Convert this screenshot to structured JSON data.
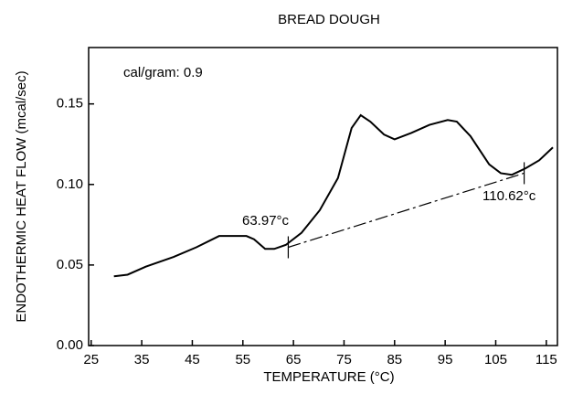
{
  "chart_data": {
    "type": "line",
    "title": "BREAD DOUGH",
    "xlabel": "TEMPERATURE (°C)",
    "ylabel": "ENDOTHERMIC HEAT FLOW (mcal/sec)",
    "annotations": [
      "cal/gram: 0.9",
      "63.97°c",
      "110.62°c"
    ],
    "series": [
      {
        "color": "#000000",
        "line_style": "solid",
        "x": [
          29.5,
          32.2,
          35.8,
          41.3,
          45.8,
          50.3,
          55.7,
          57.2,
          59.4,
          61.2,
          63.5,
          66.6,
          70.2,
          73.8,
          76.5,
          78.3,
          80.2,
          82.9,
          85.0,
          88.3,
          91.9,
          95.5,
          97.3,
          100.0,
          103.7,
          106.0,
          108.2,
          110.9,
          113.6,
          116.3
        ],
        "values": [
          0.043,
          0.044,
          0.049,
          0.055,
          0.061,
          0.068,
          0.068,
          0.066,
          0.06,
          0.06,
          0.0625,
          0.07,
          0.084,
          0.104,
          0.135,
          0.143,
          0.139,
          0.131,
          0.128,
          0.132,
          0.137,
          0.14,
          0.139,
          0.13,
          0.1125,
          0.107,
          0.106,
          0.11,
          0.115,
          0.123
        ]
      },
      {
        "color": "#000000",
        "line_style": "dashdot",
        "x": [
          63.97,
          110.62
        ],
        "values": [
          0.061,
          0.107
        ]
      }
    ],
    "xlim": [
      24.5,
      117.2
    ],
    "ylim": [
      0,
      0.185
    ],
    "xticks": [
      25,
      35,
      45,
      55,
      65,
      75,
      85,
      95,
      105,
      115
    ],
    "yticks": [
      {
        "value": 0,
        "label": "0.00"
      },
      {
        "value": 0.05,
        "label": "0.05"
      },
      {
        "value": 0.1,
        "label": "0.10"
      },
      {
        "value": 0.15,
        "label": "0.15"
      }
    ],
    "grid": false
  }
}
